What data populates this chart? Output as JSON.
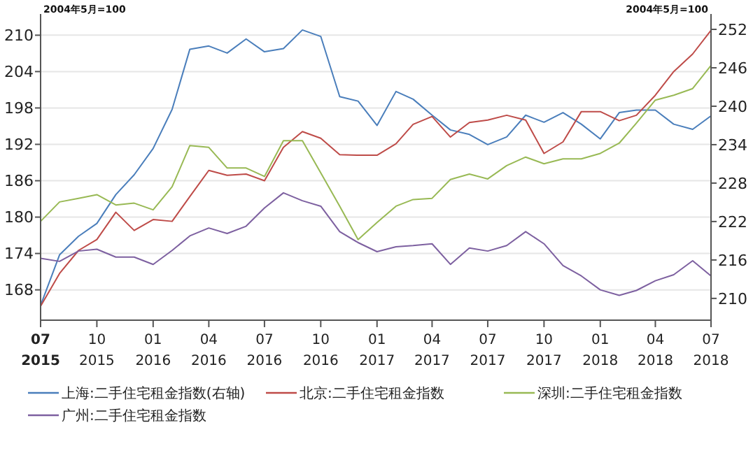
{
  "chart_data": {
    "type": "line",
    "annotations": [
      "2004年5月=100",
      "2004年5月=100"
    ],
    "x": [
      "2015-07",
      "2015-08",
      "2015-09",
      "2015-10",
      "2015-11",
      "2015-12",
      "2016-01",
      "2016-02",
      "2016-03",
      "2016-04",
      "2016-05",
      "2016-06",
      "2016-07",
      "2016-08",
      "2016-09",
      "2016-10",
      "2016-11",
      "2016-12",
      "2017-01",
      "2017-02",
      "2017-03",
      "2017-04",
      "2017-05",
      "2017-06",
      "2017-07",
      "2017-08",
      "2017-09",
      "2017-10",
      "2017-11",
      "2017-12",
      "2018-01",
      "2018-02",
      "2018-03",
      "2018-04",
      "2018-05",
      "2018-06",
      "2018-07"
    ],
    "xlim": [
      "2015-07",
      "2018-07"
    ],
    "xticks": [
      {
        "value": "2015-07",
        "label": "07\n2015"
      },
      {
        "value": "2015-10",
        "label": "10\n2015"
      },
      {
        "value": "2016-01",
        "label": "01\n2016"
      },
      {
        "value": "2016-04",
        "label": "04\n2016"
      },
      {
        "value": "2016-07",
        "label": "07\n2016"
      },
      {
        "value": "2016-10",
        "label": "10\n2016"
      },
      {
        "value": "2017-01",
        "label": "01\n2017"
      },
      {
        "value": "2017-04",
        "label": "04\n2017"
      },
      {
        "value": "2017-07",
        "label": "07\n2017"
      },
      {
        "value": "2017-10",
        "label": "10\n2017"
      },
      {
        "value": "2018-01",
        "label": "01\n2018"
      },
      {
        "value": "2018-04",
        "label": "04\n2018"
      },
      {
        "value": "2018-07",
        "label": "07\n2018"
      }
    ],
    "ylim": [
      163,
      213.5
    ],
    "yticks": [
      168,
      174,
      180,
      186,
      192,
      198,
      204,
      210
    ],
    "y2lim": [
      206.6,
      254.4
    ],
    "y2ticks": [
      210,
      216,
      222,
      228,
      234,
      240,
      246,
      252
    ],
    "grid": "y",
    "legend": "bottom",
    "series": [
      {
        "name": "上海:二手住宅租金指数(右轴)",
        "color": "#4a7ebb",
        "axis": "y2",
        "values": [
          208.9,
          216.8,
          219.7,
          221.7,
          226.2,
          229.3,
          233.4,
          239.5,
          248.9,
          249.4,
          248.3,
          250.5,
          248.5,
          249.0,
          251.9,
          250.9,
          241.5,
          240.8,
          237.0,
          242.3,
          241.1,
          238.6,
          236.3,
          235.6,
          234.0,
          235.2,
          238.6,
          237.5,
          239.0,
          237.2,
          234.9,
          239.0,
          239.4,
          239.4,
          237.2,
          236.4,
          238.5
        ]
      },
      {
        "name": "北京:二手住宅租金指数",
        "color": "#be4b48",
        "values": [
          165.3,
          170.7,
          174.5,
          176.3,
          180.8,
          177.8,
          179.6,
          179.3,
          183.4,
          187.7,
          186.9,
          187.1,
          186.0,
          191.5,
          194.1,
          193.0,
          190.3,
          190.2,
          190.2,
          192.1,
          195.3,
          196.6,
          193.2,
          195.6,
          196.0,
          196.8,
          196.0,
          190.5,
          192.4,
          197.4,
          197.4,
          195.9,
          196.8,
          200.1,
          204.0,
          206.9,
          210.8
        ]
      },
      {
        "name": "深圳:二手住宅租金指数",
        "color": "#98b954",
        "values": [
          179.3,
          182.5,
          183.1,
          183.7,
          182.0,
          182.3,
          181.2,
          185.0,
          191.8,
          191.5,
          188.1,
          188.1,
          186.7,
          192.6,
          192.6,
          187.3,
          181.8,
          176.3,
          179.1,
          181.8,
          182.9,
          183.1,
          186.2,
          187.1,
          186.3,
          188.5,
          189.9,
          188.8,
          189.6,
          189.6,
          190.5,
          192.2,
          195.5,
          199.3,
          200.1,
          201.2,
          205.0
        ]
      },
      {
        "name": "广州:二手住宅租金指数",
        "color": "#7d60a0",
        "values": [
          173.2,
          172.7,
          174.4,
          174.7,
          173.4,
          173.4,
          172.2,
          174.5,
          176.9,
          178.2,
          177.3,
          178.5,
          181.5,
          184.0,
          182.7,
          181.8,
          177.6,
          175.8,
          174.3,
          175.1,
          175.3,
          175.6,
          172.2,
          174.9,
          174.4,
          175.3,
          177.6,
          175.6,
          172.0,
          170.3,
          168.0,
          167.1,
          167.9,
          169.5,
          170.5,
          172.8,
          170.3
        ]
      }
    ]
  }
}
